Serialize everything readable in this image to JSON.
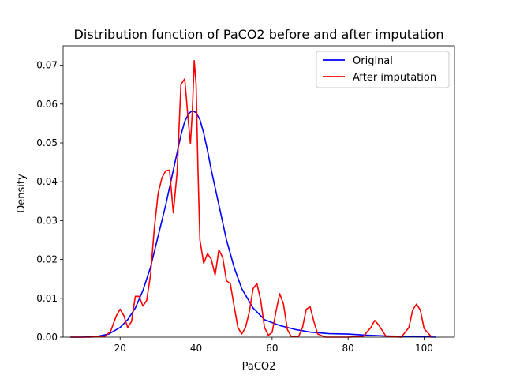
{
  "chart_data": {
    "type": "line",
    "title": "Distribution function of PaCO2 before and after imputation",
    "xlabel": "PaCO2",
    "ylabel": "Density",
    "xlim": [
      5,
      108
    ],
    "ylim": [
      0,
      0.075
    ],
    "xticks": [
      20,
      40,
      60,
      80,
      100
    ],
    "yticks": [
      0.0,
      0.01,
      0.02,
      0.03,
      0.04,
      0.05,
      0.06,
      0.07
    ],
    "xtick_labels": [
      "20",
      "40",
      "60",
      "80",
      "100"
    ],
    "ytick_labels": [
      "0.00",
      "0.01",
      "0.02",
      "0.03",
      "0.04",
      "0.05",
      "0.06",
      "0.07"
    ],
    "grid": false,
    "legend_position": "upper right",
    "series": [
      {
        "name": "Original",
        "color": "#0000ff",
        "x": [
          7,
          10,
          14,
          17,
          20,
          22,
          24,
          26,
          28,
          30,
          32,
          34,
          35,
          36,
          37,
          38,
          39,
          40,
          41,
          42,
          43,
          44,
          46,
          48,
          50,
          52,
          55,
          58,
          62,
          66,
          70,
          75,
          80,
          85,
          90,
          95,
          100,
          103
        ],
        "y": [
          0.0,
          0.0,
          0.0002,
          0.0008,
          0.0025,
          0.0045,
          0.0075,
          0.012,
          0.018,
          0.026,
          0.034,
          0.043,
          0.0475,
          0.052,
          0.0555,
          0.0575,
          0.0583,
          0.0578,
          0.056,
          0.0525,
          0.048,
          0.043,
          0.034,
          0.025,
          0.018,
          0.0125,
          0.0075,
          0.0045,
          0.003,
          0.002,
          0.0013,
          0.0009,
          0.0008,
          0.0005,
          0.0003,
          0.0002,
          0.0001,
          0.0
        ]
      },
      {
        "name": "After imputation",
        "color": "#ff0000",
        "x": [
          7,
          12,
          16,
          17.5,
          19,
          20,
          21,
          22,
          23,
          24,
          25,
          26,
          27,
          28,
          29,
          30,
          31,
          32,
          33,
          34,
          35,
          36,
          37,
          38,
          38.5,
          39,
          39.5,
          40,
          40.5,
          41,
          42,
          43,
          44,
          45,
          46,
          47,
          48,
          49,
          50,
          51,
          52,
          53,
          54,
          55,
          56,
          57,
          58,
          59,
          60,
          61,
          62,
          63,
          64,
          65,
          67,
          68,
          69,
          70,
          71,
          72,
          74,
          80,
          84,
          86,
          87,
          88,
          90,
          94,
          96,
          97,
          98,
          99,
          100,
          102
        ],
        "y": [
          0.0,
          0.0,
          0.0002,
          0.0015,
          0.0055,
          0.0072,
          0.0055,
          0.0025,
          0.004,
          0.0105,
          0.0105,
          0.008,
          0.0095,
          0.016,
          0.028,
          0.037,
          0.041,
          0.0428,
          0.043,
          0.032,
          0.0425,
          0.065,
          0.0665,
          0.055,
          0.0498,
          0.058,
          0.0712,
          0.065,
          0.0428,
          0.025,
          0.019,
          0.0215,
          0.02,
          0.016,
          0.0225,
          0.0205,
          0.0145,
          0.0138,
          0.008,
          0.0025,
          0.0008,
          0.0025,
          0.0065,
          0.0125,
          0.0138,
          0.0095,
          0.0025,
          0.0005,
          0.0012,
          0.0065,
          0.0112,
          0.0085,
          0.002,
          0.0002,
          0.0002,
          0.0025,
          0.0072,
          0.0078,
          0.004,
          0.0008,
          0.0,
          0.0,
          0.0002,
          0.0025,
          0.0043,
          0.0032,
          0.0002,
          0.0,
          0.0025,
          0.007,
          0.0085,
          0.007,
          0.0022,
          0.0
        ]
      }
    ]
  }
}
